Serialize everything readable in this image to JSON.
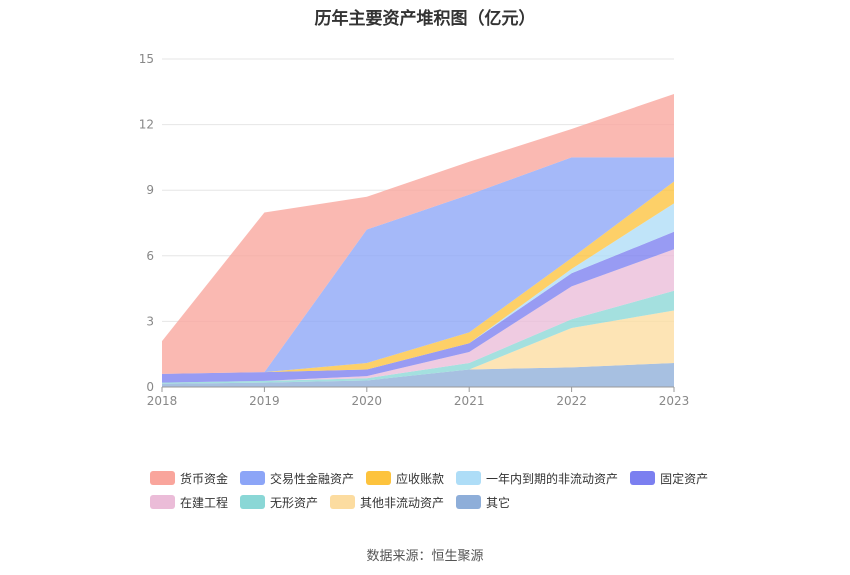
{
  "chart_data": {
    "type": "area",
    "stacked": true,
    "title": "历年主要资产堆积图（亿元）",
    "categories": [
      "2018",
      "2019",
      "2020",
      "2021",
      "2022",
      "2023"
    ],
    "yticks": [
      "0",
      "3",
      "6",
      "9",
      "12",
      "15"
    ],
    "ylim": [
      0,
      15
    ],
    "grid": true,
    "legend_position": "bottom",
    "series": [
      {
        "name": "其它",
        "color": "#8eaed9",
        "values": [
          0.15,
          0.2,
          0.3,
          0.8,
          0.9,
          1.1
        ]
      },
      {
        "name": "其他非流动资产",
        "color": "#fcdca0",
        "values": [
          0.0,
          0.0,
          0.0,
          0.0,
          1.8,
          2.4
        ]
      },
      {
        "name": "无形资产",
        "color": "#8ad7d6",
        "values": [
          0.05,
          0.08,
          0.1,
          0.3,
          0.4,
          0.9
        ]
      },
      {
        "name": "在建工程",
        "color": "#ebbcd8",
        "values": [
          0.0,
          0.0,
          0.1,
          0.5,
          1.5,
          1.9
        ]
      },
      {
        "name": "固定资产",
        "color": "#7b7ff0",
        "values": [
          0.4,
          0.4,
          0.3,
          0.4,
          0.6,
          0.8
        ]
      },
      {
        "name": "一年内到期的非流动资产",
        "color": "#aeddf7",
        "values": [
          0.0,
          0.0,
          0.0,
          0.0,
          0.2,
          1.3
        ]
      },
      {
        "name": "应收账款",
        "color": "#fdc33d",
        "values": [
          0.0,
          0.0,
          0.3,
          0.5,
          0.5,
          1.0
        ]
      },
      {
        "name": "交易性金融资产",
        "color": "#8ca5f7",
        "values": [
          0.0,
          0.0,
          6.1,
          6.3,
          4.6,
          1.1
        ]
      },
      {
        "name": "货币资金",
        "color": "#f9a59c",
        "values": [
          1.5,
          7.3,
          1.5,
          1.5,
          1.3,
          2.9
        ]
      }
    ]
  },
  "legend": {
    "row1": [
      {
        "label": "货币资金",
        "color": "#f9a59c"
      },
      {
        "label": "交易性金融资产",
        "color": "#8ca5f7"
      },
      {
        "label": "应收账款",
        "color": "#fdc33d"
      },
      {
        "label": "一年内到期的非流动资产",
        "color": "#aeddf7"
      },
      {
        "label": "固定资产",
        "color": "#7b7ff0"
      }
    ],
    "row2": [
      {
        "label": "在建工程",
        "color": "#ebbcd8"
      },
      {
        "label": "无形资产",
        "color": "#8ad7d6"
      },
      {
        "label": "其他非流动资产",
        "color": "#fcdca0"
      },
      {
        "label": "其它",
        "color": "#8eaed9"
      }
    ]
  },
  "source": "数据来源：恒生聚源"
}
